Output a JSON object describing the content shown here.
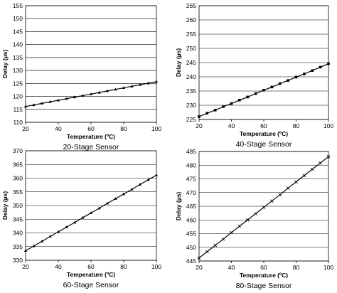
{
  "chart_data": [
    {
      "type": "line",
      "title": "20-Stage Sensor",
      "xlabel": "Temperature (ºC)",
      "ylabel": "Delay (µs)",
      "xlim": [
        20,
        100
      ],
      "ylim": [
        110,
        155
      ],
      "xticks": [
        20,
        40,
        60,
        80,
        100
      ],
      "yticks": [
        110,
        115,
        120,
        125,
        130,
        135,
        140,
        145,
        150,
        155
      ],
      "grid": "horizontal",
      "marker": "triangle",
      "series": [
        {
          "x": [
            20,
            25,
            30,
            35,
            40,
            45,
            50,
            55,
            60,
            65,
            70,
            75,
            80,
            85,
            90,
            95,
            100
          ],
          "y": [
            116.1,
            116.7,
            117.3,
            117.9,
            118.5,
            119.1,
            119.7,
            120.3,
            120.9,
            121.5,
            122.1,
            122.7,
            123.3,
            123.9,
            124.5,
            125.1,
            125.7
          ]
        }
      ]
    },
    {
      "type": "line",
      "title": "40-Stage Sensor",
      "xlabel": "Temperature (ºC)",
      "ylabel": "Delay (µs)",
      "xlim": [
        20,
        100
      ],
      "ylim": [
        225,
        265
      ],
      "xticks": [
        20,
        40,
        60,
        80,
        100
      ],
      "yticks": [
        225,
        230,
        235,
        240,
        245,
        250,
        255,
        260,
        265
      ],
      "grid": "horizontal",
      "marker": "square",
      "series": [
        {
          "x": [
            20,
            25,
            30,
            35,
            40,
            45,
            50,
            55,
            60,
            65,
            70,
            75,
            80,
            85,
            90,
            95,
            100
          ],
          "y": [
            226.0,
            227.2,
            228.3,
            229.5,
            230.6,
            231.8,
            232.9,
            234.1,
            235.3,
            236.4,
            237.6,
            238.7,
            239.9,
            241.0,
            242.2,
            243.4,
            244.6
          ]
        }
      ]
    },
    {
      "type": "line",
      "title": "60-Stage Sensor",
      "xlabel": "Temperature (ºC)",
      "ylabel": "Delay (µs)",
      "xlim": [
        20,
        100
      ],
      "ylim": [
        330,
        370
      ],
      "xticks": [
        20,
        40,
        60,
        80,
        100
      ],
      "yticks": [
        330,
        335,
        340,
        345,
        350,
        355,
        360,
        365,
        370
      ],
      "grid": "horizontal",
      "marker": "triangle",
      "series": [
        {
          "x": [
            20,
            25,
            30,
            35,
            40,
            45,
            50,
            55,
            60,
            65,
            70,
            75,
            80,
            85,
            90,
            95,
            100
          ],
          "y": [
            333.5,
            335.2,
            336.9,
            338.7,
            340.4,
            342.1,
            343.8,
            345.6,
            347.3,
            349.0,
            350.8,
            352.5,
            354.2,
            355.9,
            357.7,
            359.4,
            361.1
          ]
        }
      ]
    },
    {
      "type": "line",
      "title": "80-Stage Sensor",
      "xlabel": "Temperature (ºC)",
      "ylabel": "Delay (µs)",
      "xlim": [
        20,
        100
      ],
      "ylim": [
        445,
        485
      ],
      "xticks": [
        20,
        40,
        60,
        80,
        100
      ],
      "yticks": [
        445,
        450,
        455,
        460,
        465,
        470,
        475,
        480,
        485
      ],
      "grid": "horizontal",
      "marker": "cross",
      "series": [
        {
          "x": [
            20,
            25,
            30,
            35,
            40,
            45,
            50,
            55,
            60,
            65,
            70,
            75,
            80,
            85,
            90,
            95,
            100
          ],
          "y": [
            446.1,
            448.4,
            450.7,
            453.0,
            455.4,
            457.7,
            460.0,
            462.3,
            464.6,
            466.9,
            469.2,
            471.6,
            473.9,
            476.2,
            478.5,
            480.8,
            483.1
          ]
        }
      ]
    }
  ]
}
